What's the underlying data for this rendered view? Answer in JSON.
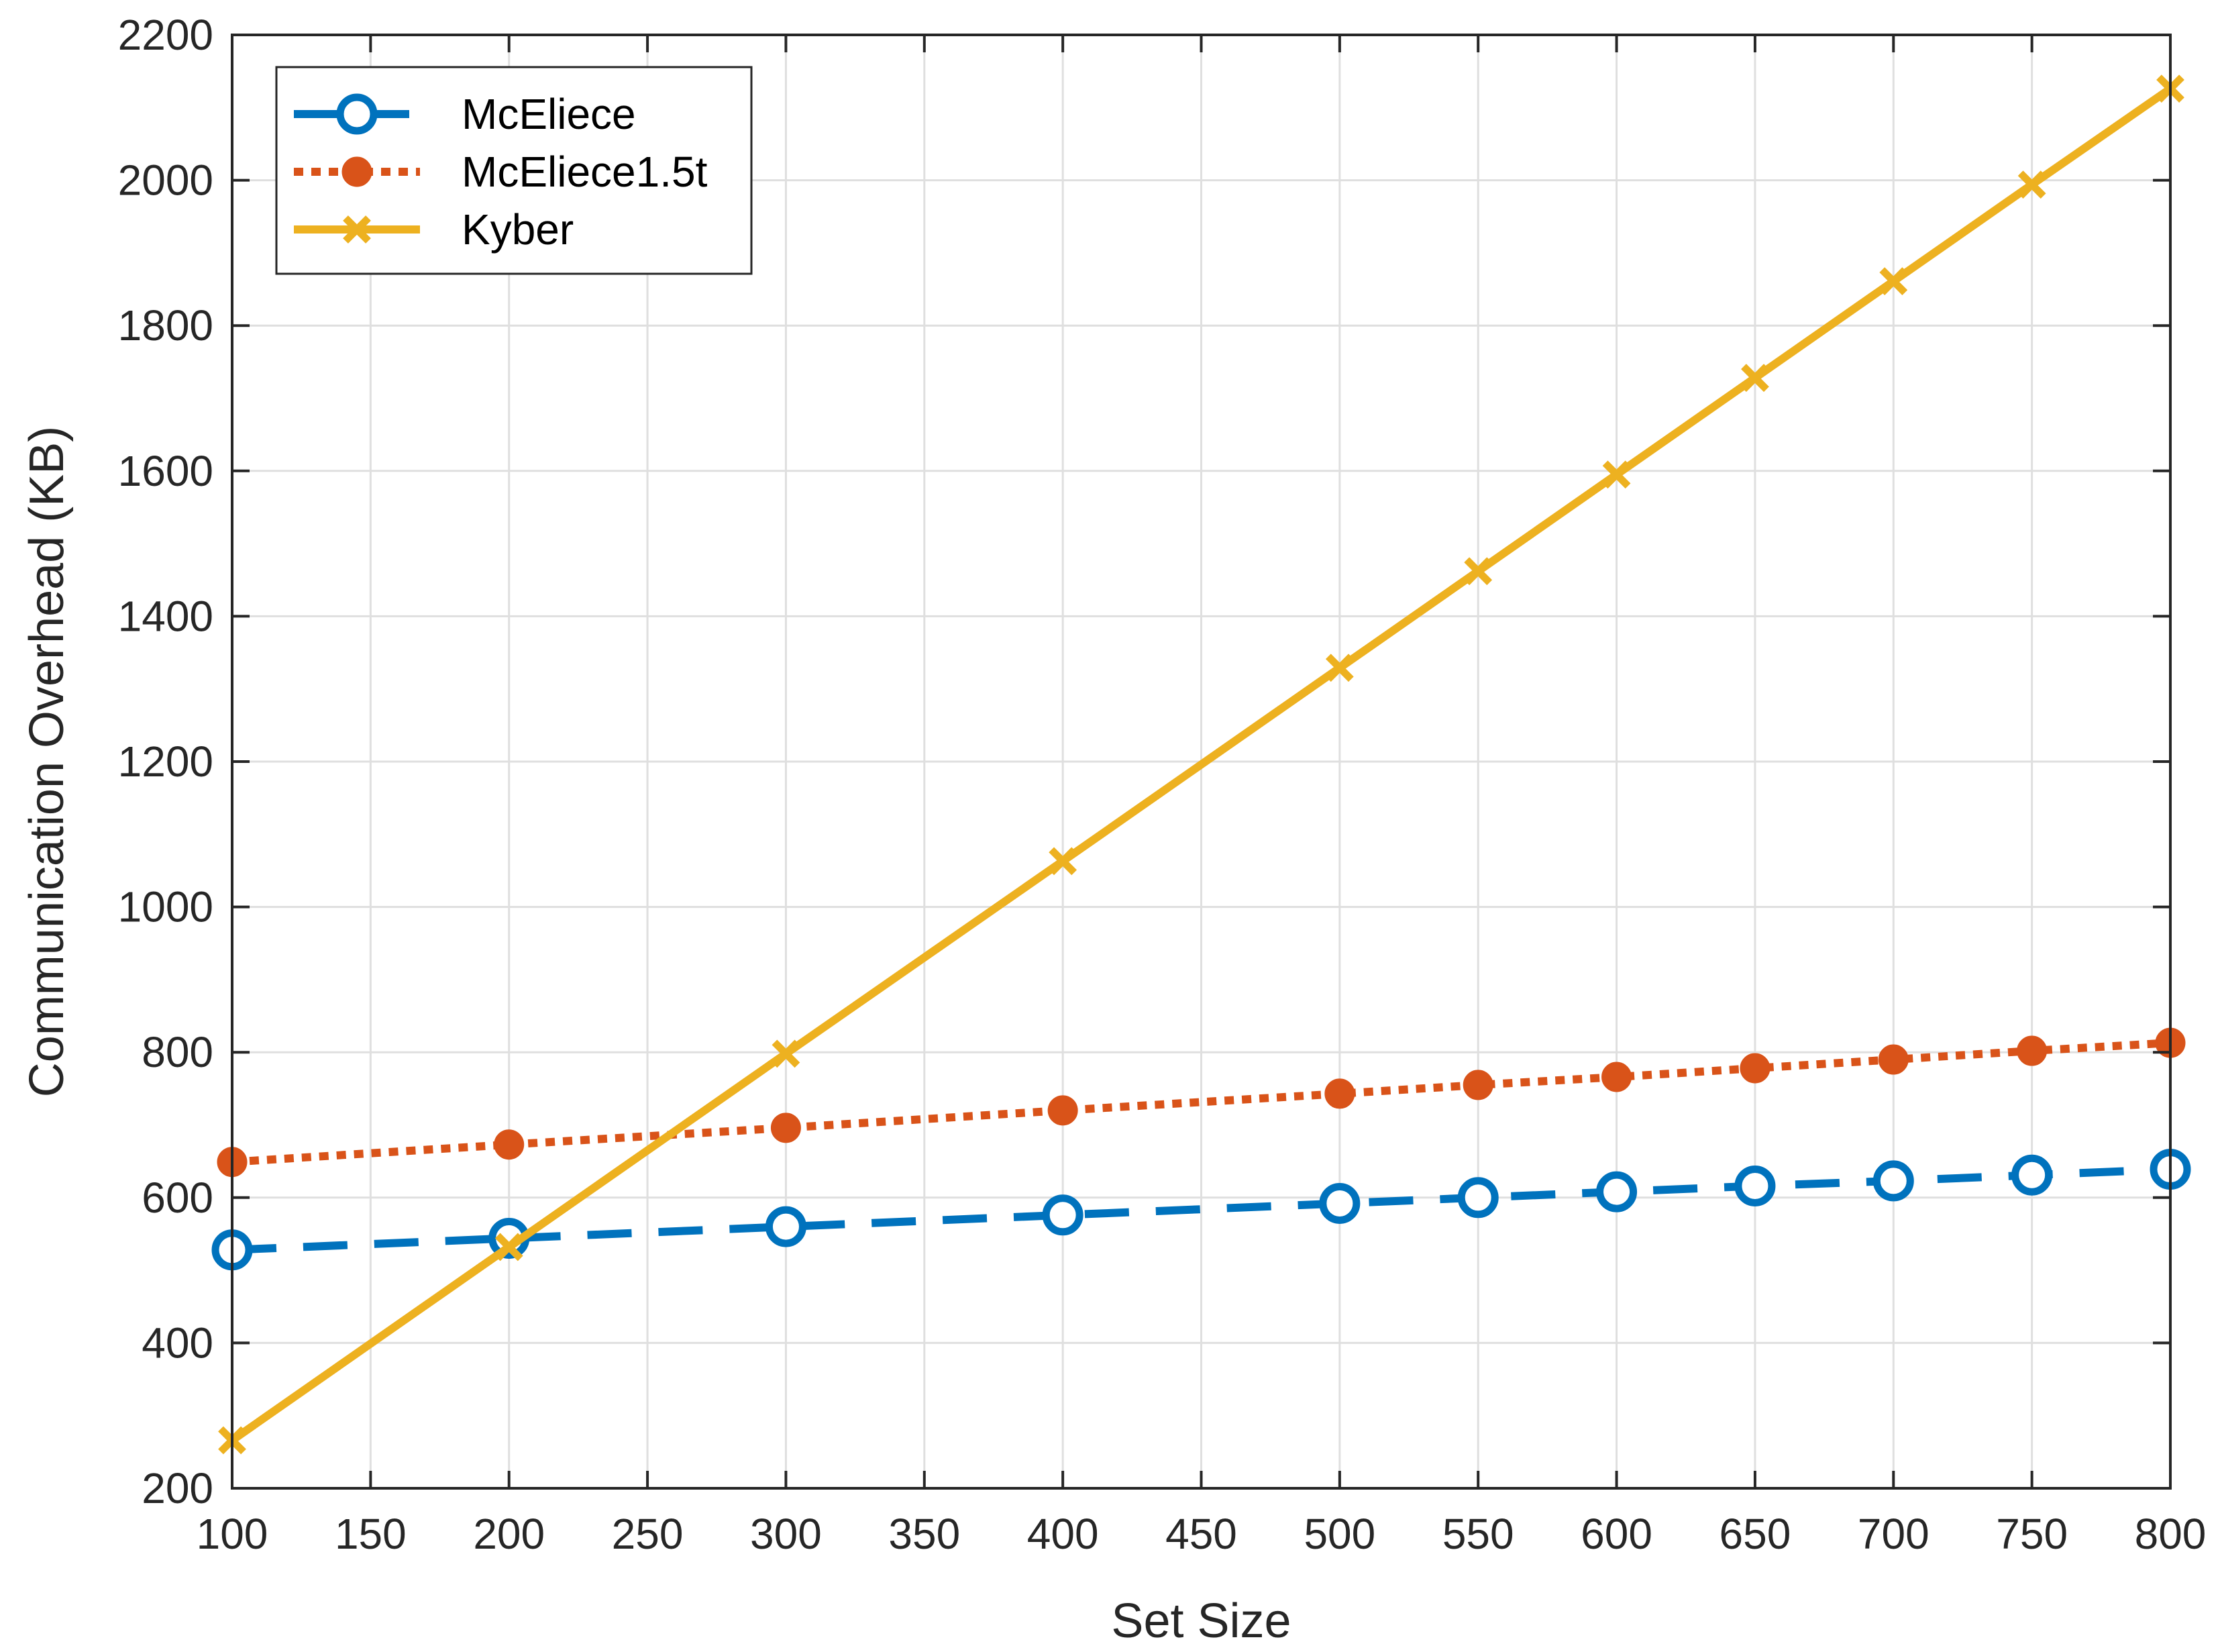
{
  "chart_data": {
    "type": "line",
    "title": "",
    "xlabel": "Set Size",
    "ylabel": "Communication Overhead (KB)",
    "xlim": [
      100,
      800
    ],
    "ylim": [
      200,
      2200
    ],
    "xticks": [
      100,
      150,
      200,
      250,
      300,
      350,
      400,
      450,
      500,
      550,
      600,
      650,
      700,
      750,
      800
    ],
    "yticks": [
      200,
      400,
      600,
      800,
      1000,
      1200,
      1400,
      1600,
      1800,
      2000,
      2200
    ],
    "grid": true,
    "legend_position": "top-left",
    "x": [
      100,
      200,
      300,
      400,
      500,
      550,
      600,
      650,
      700,
      750,
      800
    ],
    "series": [
      {
        "name": "McEliece",
        "color": "#0072BD",
        "line_style": "dashed",
        "marker": "circle-open",
        "values": [
          528,
          544,
          560,
          576,
          592,
          600,
          608,
          616,
          623,
          631,
          639
        ]
      },
      {
        "name": "McEliece1.5t",
        "color": "#D95319",
        "line_style": "dotted",
        "marker": "circle-filled",
        "values": [
          649,
          673,
          696,
          720,
          743,
          755,
          766,
          778,
          790,
          802,
          813
        ]
      },
      {
        "name": "Kyber",
        "color": "#EDB120",
        "line_style": "solid",
        "marker": "x",
        "values": [
          266,
          532,
          798,
          1063,
          1329,
          1462,
          1595,
          1728,
          1861,
          1994,
          2126
        ]
      }
    ]
  }
}
